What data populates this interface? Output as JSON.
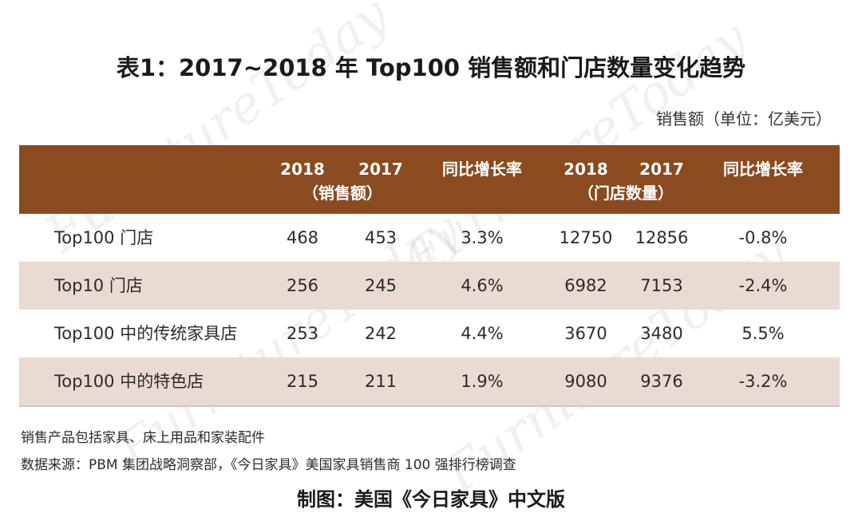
{
  "title": "表1：2017~2018 年 Top100 销售额和门店数量变化趋势",
  "unit_note": "销售额（单位：亿美元）",
  "watermark_text": "FurnitureToday",
  "colors": {
    "header_bg": "#8a4b20",
    "alt_row_bg": "#e9dad3"
  },
  "chart_data": {
    "type": "table",
    "columns": [
      {
        "label": "2018",
        "sub": ""
      },
      {
        "label": "2017",
        "sub": ""
      },
      {
        "label": "同比增长率",
        "sub": ""
      },
      {
        "label": "2018",
        "sub": ""
      },
      {
        "label": "2017",
        "sub": ""
      },
      {
        "label": "同比增长率",
        "sub": ""
      }
    ],
    "group_labels": [
      "（销售额）",
      "（门店数量）"
    ],
    "rows": [
      {
        "label": "Top100 门店",
        "values": [
          "468",
          "453",
          "3.3%",
          "12750",
          "12856",
          "-0.8%"
        ]
      },
      {
        "label": "Top10 门店",
        "values": [
          "256",
          "245",
          "4.6%",
          "6982",
          "7153",
          "-2.4%"
        ]
      },
      {
        "label": "Top100 中的传统家具店",
        "values": [
          "253",
          "242",
          "4.4%",
          "3670",
          "3480",
          "5.5%"
        ]
      },
      {
        "label": "Top100 中的特色店",
        "values": [
          "215",
          "211",
          "1.9%",
          "9080",
          "9376",
          "-3.2%"
        ]
      }
    ]
  },
  "notes": [
    "销售产品包括家具、床上用品和家装配件",
    "数据来源：PBM 集团战略洞察部，《今日家具》美国家具销售商 100 强排行榜调查"
  ],
  "credit": "制图：美国《今日家具》中文版"
}
